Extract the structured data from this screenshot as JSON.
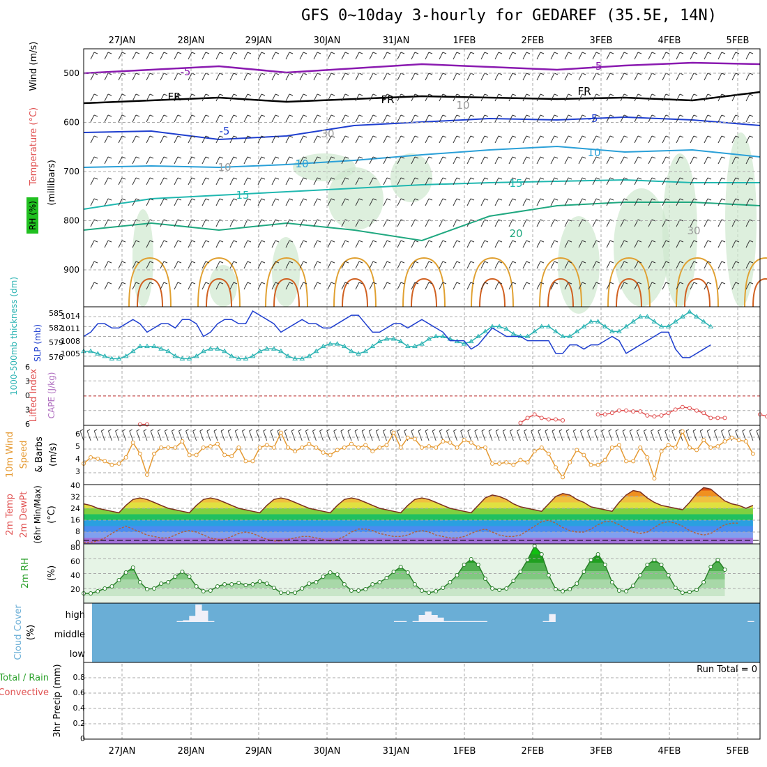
{
  "title": "GFS 0~10day 3-hourly for GEDAREF (35.5E, 14N)",
  "dates": [
    "27JAN",
    "28JAN",
    "29JAN",
    "30JAN",
    "31JAN",
    "1FEB",
    "2FEB",
    "3FEB",
    "4FEB",
    "5FEB"
  ],
  "panels": {
    "upper": {
      "ylabel_rh": "RH (%)",
      "ylabel_temp": "Temperature (°C)",
      "ylabel_wind": "Wind (m/s)",
      "ylabel_mb": "(millibars)",
      "yticks": [
        "500",
        "600",
        "700",
        "800",
        "900"
      ],
      "contour_labels": [
        "-5",
        "-5",
        "FR",
        "FR",
        "FR",
        "-5",
        "-5",
        "10",
        "10",
        "15",
        "15",
        "20",
        "10",
        "10",
        "30",
        "30"
      ]
    },
    "slp": {
      "ylabel_a": "1000-500mb thickness (dm)",
      "ylabel_b": "SLP (mb)",
      "left_ticks": [
        "585",
        "582",
        "579",
        "576"
      ],
      "right_ticks": [
        "1014",
        "1011",
        "1008",
        "1005"
      ]
    },
    "li": {
      "ylabel_a": "Lifted Index",
      "ylabel_b": "CAPE (J/kg)",
      "yticks": [
        "6",
        "3",
        "0",
        "3",
        "6"
      ]
    },
    "wind10": {
      "ylabel_a": "10m Wind",
      "ylabel_b": "Speed",
      "ylabel_c": "& Barbs",
      "ylabel_d": "(m/s)",
      "yticks": [
        "6",
        "5",
        "4",
        "3"
      ]
    },
    "temp2m": {
      "ylabel_a": "2m Temp",
      "ylabel_b": "2m DewPt",
      "ylabel_c": "(6hr Min/Max)",
      "ylabel_d": "(°C)",
      "yticks": [
        "40",
        "32",
        "24",
        "16",
        "8",
        "0"
      ]
    },
    "rh2m": {
      "ylabel_a": "2m RH",
      "ylabel_b": "(%)",
      "yticks": [
        "80",
        "60",
        "40",
        "20"
      ]
    },
    "cloud": {
      "ylabel_a": "Cloud Cover",
      "ylabel_b": "(%)",
      "levels": [
        "high",
        "middle",
        "low"
      ]
    },
    "precip": {
      "ylabel_a": "Total / Rain",
      "ylabel_b": "Convective",
      "ylabel_c": "3hr Precip (mm)",
      "yticks": [
        "0.8",
        "0.6",
        "0.4",
        "0.2",
        "0"
      ],
      "run_total": "Run Total = 0"
    }
  },
  "colors": {
    "slp": "#1f3fcf",
    "thickness": "#2bb3b3",
    "lifted": "#e05050",
    "wind": "#e59a33",
    "temp_line": "#7a3020",
    "dewpt": "#b06040",
    "rh": "#2aa02a",
    "cloud": "#6aaed6",
    "grid": "#aaaaaa"
  },
  "chart_data": [
    {
      "type": "line",
      "title": "SLP (mb)",
      "x_start": "26JAN 18Z",
      "x_step_hours": 3,
      "ylim": [
        1002,
        1016
      ],
      "values": [
        1009,
        1010,
        1012,
        1012,
        1011,
        1011,
        1012,
        1013,
        1012,
        1010,
        1011,
        1012,
        1012,
        1011,
        1013,
        1013,
        1012,
        1009,
        1010,
        1012,
        1013,
        1013,
        1012,
        1012,
        1015,
        1014,
        1013,
        1012,
        1010,
        1011,
        1012,
        1013,
        1012,
        1012,
        1011,
        1011,
        1012,
        1013,
        1014,
        1014,
        1012,
        1010,
        1010,
        1011,
        1012,
        1012,
        1011,
        1012,
        1013,
        1012,
        1011,
        1010,
        1008,
        1008,
        1008,
        1006,
        1007,
        1009,
        1011,
        1010,
        1009,
        1009,
        1009,
        1008,
        1008,
        1008,
        1008,
        1005,
        1005,
        1007,
        1007,
        1006,
        1007,
        1007,
        1008,
        1009,
        1008,
        1005,
        1006,
        1007,
        1008,
        1009,
        1010,
        1010,
        1006,
        1004,
        1004,
        1005,
        1006,
        1007
      ]
    },
    {
      "type": "line",
      "title": "1000-500mb thickness (dm)",
      "x_start": "26JAN 18Z",
      "x_step_hours": 3,
      "ylim": [
        574,
        586
      ],
      "values": [
        577,
        577,
        576.5,
        576,
        575.5,
        575.5,
        576,
        577,
        578,
        578,
        578,
        577.5,
        577,
        576,
        575.5,
        575.5,
        576,
        577,
        577.5,
        577.5,
        577,
        576,
        575.5,
        575.5,
        576,
        577,
        577.5,
        577.5,
        577,
        576,
        575.5,
        575.5,
        576,
        577,
        578,
        578.5,
        578.5,
        578,
        577,
        576.5,
        577,
        578,
        579,
        579.5,
        579.5,
        579,
        578,
        578,
        578.5,
        579.5,
        580,
        580,
        579.5,
        579,
        578.5,
        579,
        580,
        581,
        582,
        582,
        581.5,
        580.5,
        580,
        580,
        581,
        582,
        582,
        581,
        580,
        580,
        581,
        582,
        583,
        583,
        582,
        581,
        581,
        582,
        583,
        584,
        584,
        583,
        582,
        582,
        583,
        584,
        585,
        584,
        583,
        582
      ]
    },
    {
      "type": "line",
      "title": "Lifted Index",
      "x_start": "26JAN 18Z",
      "x_step_hours": 3,
      "ylim": [
        6,
        -6
      ],
      "values": [
        null,
        null,
        null,
        null,
        null,
        null,
        null,
        null,
        5.8,
        5.8,
        null,
        null,
        null,
        null,
        null,
        null,
        null,
        null,
        null,
        null,
        null,
        null,
        null,
        null,
        null,
        null,
        null,
        null,
        null,
        null,
        null,
        null,
        null,
        null,
        null,
        null,
        null,
        null,
        null,
        null,
        null,
        null,
        null,
        null,
        null,
        null,
        null,
        null,
        null,
        null,
        null,
        null,
        null,
        null,
        null,
        null,
        null,
        null,
        null,
        null,
        null,
        null,
        5.5,
        4.5,
        3.8,
        4.5,
        4.8,
        4.8,
        5.0,
        null,
        null,
        null,
        null,
        3.8,
        3.8,
        3.5,
        3.0,
        3.0,
        3.2,
        3.2,
        4.0,
        4.2,
        4.0,
        3.5,
        2.8,
        2.3,
        2.5,
        3.0,
        3.5,
        4.5,
        4.5,
        4.5,
        null,
        null,
        null,
        null,
        3.8,
        4.2,
        5.5
      ]
    },
    {
      "type": "line",
      "title": "10m Wind Speed (m/s)",
      "x_start": "26JAN 18Z",
      "x_step_hours": 3,
      "ylim": [
        2,
        6.8
      ],
      "values": [
        3.7,
        4.2,
        4.1,
        3.9,
        3.6,
        3.7,
        4.2,
        5.4,
        4.5,
        2.8,
        4.5,
        5.0,
        5.0,
        5.0,
        5.5,
        4.4,
        4.4,
        5.0,
        5.1,
        5.3,
        4.4,
        4.3,
        5.0,
        3.9,
        3.9,
        5.0,
        5.2,
        5.0,
        6.2,
        5.0,
        4.7,
        5.0,
        5.3,
        5.0,
        4.6,
        4.4,
        4.8,
        5.0,
        5.3,
        5.0,
        5.2,
        4.7,
        5.0,
        5.2,
        6.2,
        5.0,
        5.8,
        5.7,
        5.0,
        5.1,
        5.0,
        5.5,
        5.4,
        5.0,
        5.6,
        5.4,
        5.0,
        5.0,
        3.7,
        3.7,
        3.8,
        3.6,
        4.0,
        3.8,
        4.7,
        5.0,
        4.5,
        3.4,
        2.6,
        3.8,
        4.8,
        4.4,
        3.6,
        3.6,
        4.0,
        5.0,
        5.2,
        3.9,
        3.9,
        5.0,
        4.2,
        2.5,
        4.7,
        5.2,
        5.0,
        6.3,
        5.0,
        4.8,
        5.6,
        5.0,
        5.1,
        5.5,
        5.8,
        5.6,
        5.5,
        4.5
      ]
    },
    {
      "type": "area",
      "title": "2m Temp (°C)",
      "x_start": "26JAN 18Z",
      "x_step_hours": 3,
      "ylim": [
        0,
        40
      ],
      "values": [
        27,
        26,
        24,
        23,
        22,
        21,
        26,
        30,
        31,
        30,
        28,
        26,
        24,
        23,
        22,
        21,
        26,
        30,
        31,
        30,
        28,
        26,
        24,
        23,
        22,
        21,
        26,
        30,
        31,
        30,
        28,
        26,
        24,
        23,
        22,
        21,
        26,
        30,
        31,
        30,
        28,
        26,
        24,
        23,
        22,
        21,
        26,
        30,
        31,
        30,
        28,
        26,
        24,
        23,
        22,
        21,
        26,
        31,
        33,
        32,
        30,
        27,
        25,
        24,
        23,
        22,
        27,
        32,
        34,
        33,
        30,
        28,
        25,
        24,
        23,
        22,
        28,
        33,
        36,
        35,
        31,
        28,
        26,
        25,
        24,
        23,
        28,
        34,
        38,
        37,
        33,
        29,
        27,
        26,
        24,
        26
      ]
    },
    {
      "type": "line",
      "title": "2m DewPt (°C)",
      "x_start": "26JAN 18Z",
      "x_step_hours": 3,
      "ylim": [
        0,
        40
      ],
      "values": [
        1,
        1,
        2,
        4,
        7,
        10,
        12,
        10,
        8,
        6,
        5,
        4,
        4,
        6,
        8,
        9,
        8,
        6,
        4,
        3,
        3,
        5,
        7,
        8,
        7,
        5,
        3,
        2,
        2,
        3,
        4,
        5,
        5,
        4,
        3,
        2,
        3,
        5,
        8,
        10,
        10,
        9,
        7,
        6,
        5,
        5,
        6,
        8,
        9,
        8,
        6,
        5,
        4,
        4,
        5,
        7,
        9,
        10,
        8,
        6,
        5,
        5,
        6,
        9,
        12,
        15,
        16,
        14,
        11,
        9,
        8,
        8,
        10,
        13,
        15,
        15,
        13,
        10,
        8,
        7,
        8,
        11,
        14,
        15,
        14,
        12,
        9,
        7,
        6,
        7,
        10,
        13,
        14,
        14
      ]
    },
    {
      "type": "area",
      "title": "2m RH (%)",
      "x_start": "26JAN 18Z",
      "x_step_hours": 3,
      "ylim": [
        0,
        85
      ],
      "values": [
        14,
        14,
        17,
        21,
        24,
        33,
        44,
        51,
        30,
        20,
        21,
        28,
        30,
        38,
        45,
        38,
        24,
        17,
        18,
        24,
        27,
        27,
        29,
        26,
        27,
        31,
        28,
        22,
        15,
        15,
        15,
        21,
        28,
        30,
        38,
        44,
        41,
        27,
        18,
        18,
        20,
        27,
        30,
        36,
        45,
        52,
        44,
        27,
        18,
        15,
        17,
        22,
        30,
        40,
        55,
        63,
        55,
        35,
        21,
        19,
        21,
        32,
        45,
        62,
        82,
        70,
        40,
        20,
        17,
        20,
        28,
        45,
        62,
        70,
        55,
        30,
        18,
        17,
        25,
        40,
        55,
        62,
        55,
        40,
        22,
        15,
        16,
        19,
        30,
        52,
        62,
        48
      ]
    },
    {
      "type": "bar",
      "title": "Cloud Cover high (%)",
      "x_start": "26JAN 18Z",
      "x_step_hours": 3,
      "ylim": [
        0,
        100
      ],
      "values": [
        0,
        0,
        0,
        0,
        0,
        0,
        0,
        0,
        0,
        0,
        0,
        0,
        0,
        0,
        0,
        5,
        10,
        35,
        100,
        65,
        5,
        0,
        0,
        0,
        0,
        0,
        0,
        0,
        0,
        0,
        0,
        0,
        0,
        0,
        0,
        0,
        0,
        0,
        0,
        0,
        0,
        0,
        0,
        0,
        0,
        0,
        0,
        0,
        0,
        0,
        5,
        5,
        0,
        5,
        40,
        60,
        40,
        25,
        5,
        5,
        5,
        5,
        5,
        5,
        5,
        0,
        0,
        0,
        0,
        0,
        0,
        0,
        0,
        0,
        5,
        45,
        0,
        0,
        0,
        0,
        0,
        0,
        0,
        0,
        0,
        0,
        0,
        0,
        0,
        0,
        0,
        0,
        0,
        0,
        0,
        0,
        0,
        0,
        0,
        0,
        0,
        0,
        0,
        0,
        0,
        0,
        0,
        5,
        0
      ]
    },
    {
      "type": "bar",
      "title": "3hr Precip (mm)",
      "ylim": [
        0,
        1
      ],
      "values": [
        0
      ]
    }
  ]
}
